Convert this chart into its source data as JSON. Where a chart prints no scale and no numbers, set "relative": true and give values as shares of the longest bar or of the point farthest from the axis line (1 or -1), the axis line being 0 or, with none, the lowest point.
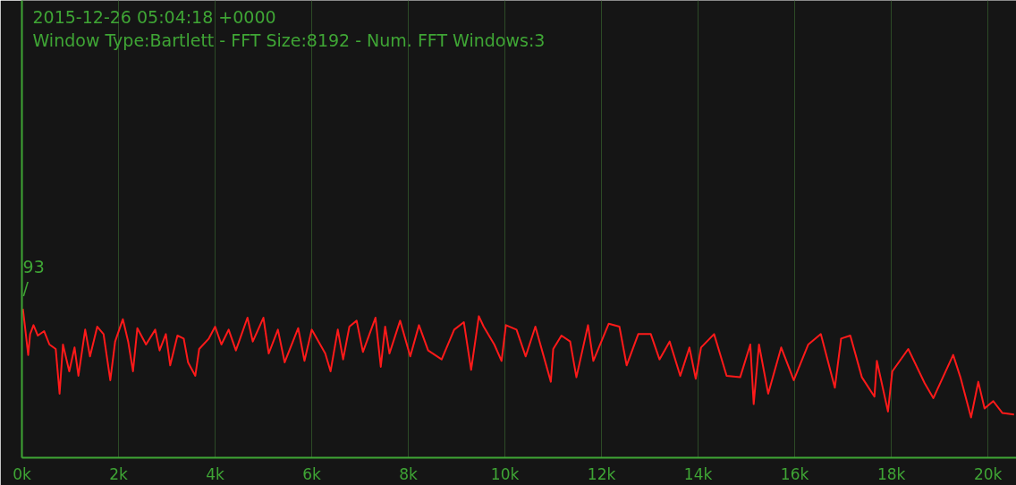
{
  "chart_data": {
    "type": "line",
    "title": "2015-12-26 05:04:18 +0000",
    "subtitle": "Window Type:Bartlett - FFT Size:8192 - Num. FFT Windows:3",
    "relative": true,
    "grid": "x",
    "marker": "none",
    "line_style": "solid",
    "annotations": [
      "93\n/"
    ],
    "xlim": [
      0,
      20590
    ],
    "xticks": [
      {
        "value": 0,
        "label": "0k"
      },
      {
        "value": 2000,
        "label": "2k"
      },
      {
        "value": 4000,
        "label": "4k"
      },
      {
        "value": 6000,
        "label": "6k"
      },
      {
        "value": 8000,
        "label": "8k"
      },
      {
        "value": 10000,
        "label": "10k"
      },
      {
        "value": 12000,
        "label": "12k"
      },
      {
        "value": 14000,
        "label": "14k"
      },
      {
        "value": 16000,
        "label": "16k"
      },
      {
        "value": 18000,
        "label": "18k"
      },
      {
        "value": 20000,
        "label": "20k"
      }
    ],
    "x": [
      20,
      60,
      130,
      170,
      240,
      330,
      460,
      570,
      700,
      780,
      850,
      980,
      1090,
      1170,
      1310,
      1410,
      1560,
      1690,
      1830,
      1930,
      2090,
      2200,
      2300,
      2390,
      2570,
      2760,
      2850,
      2980,
      3070,
      3220,
      3350,
      3440,
      3590,
      3670,
      3870,
      4000,
      4130,
      4280,
      4430,
      4670,
      4780,
      5000,
      5110,
      5300,
      5440,
      5720,
      5850,
      6000,
      6280,
      6390,
      6540,
      6650,
      6780,
      6930,
      7060,
      7320,
      7430,
      7520,
      7610,
      7830,
      8040,
      8220,
      8410,
      8690,
      8950,
      9150,
      9300,
      9460,
      9560,
      9780,
      9930,
      10020,
      10240,
      10430,
      10630,
      10950,
      11000,
      11170,
      11350,
      11480,
      11720,
      11830,
      12150,
      12370,
      12520,
      12760,
      13020,
      13200,
      13410,
      13630,
      13820,
      13950,
      14060,
      14330,
      14590,
      14870,
      15080,
      15150,
      15260,
      15450,
      15720,
      15980,
      16280,
      16540,
      16830,
      16960,
      17150,
      17390,
      17650,
      17700,
      17930,
      18020,
      18350,
      18690,
      18870,
      19280,
      19430,
      19650,
      19800,
      19930,
      20110,
      20300,
      20540
    ],
    "series": [
      {
        "color": "#ff1a1a",
        "values": [
          1.0,
          0.89,
          0.69,
          0.83,
          0.89,
          0.82,
          0.85,
          0.76,
          0.73,
          0.43,
          0.76,
          0.58,
          0.74,
          0.55,
          0.86,
          0.68,
          0.88,
          0.83,
          0.52,
          0.78,
          0.93,
          0.78,
          0.58,
          0.87,
          0.76,
          0.86,
          0.72,
          0.83,
          0.62,
          0.82,
          0.8,
          0.64,
          0.55,
          0.73,
          0.8,
          0.88,
          0.76,
          0.86,
          0.72,
          0.94,
          0.78,
          0.94,
          0.7,
          0.86,
          0.64,
          0.87,
          0.65,
          0.86,
          0.7,
          0.58,
          0.86,
          0.66,
          0.88,
          0.92,
          0.71,
          0.94,
          0.61,
          0.88,
          0.7,
          0.92,
          0.68,
          0.89,
          0.72,
          0.66,
          0.86,
          0.91,
          0.59,
          0.95,
          0.88,
          0.76,
          0.65,
          0.89,
          0.86,
          0.68,
          0.88,
          0.51,
          0.73,
          0.82,
          0.78,
          0.54,
          0.89,
          0.65,
          0.9,
          0.88,
          0.62,
          0.83,
          0.83,
          0.66,
          0.78,
          0.55,
          0.74,
          0.53,
          0.74,
          0.83,
          0.55,
          0.54,
          0.76,
          0.36,
          0.76,
          0.43,
          0.74,
          0.52,
          0.76,
          0.83,
          0.47,
          0.8,
          0.82,
          0.54,
          0.41,
          0.65,
          0.31,
          0.58,
          0.73,
          0.5,
          0.4,
          0.69,
          0.54,
          0.27,
          0.51,
          0.33,
          0.38,
          0.3,
          0.29
        ]
      }
    ]
  }
}
